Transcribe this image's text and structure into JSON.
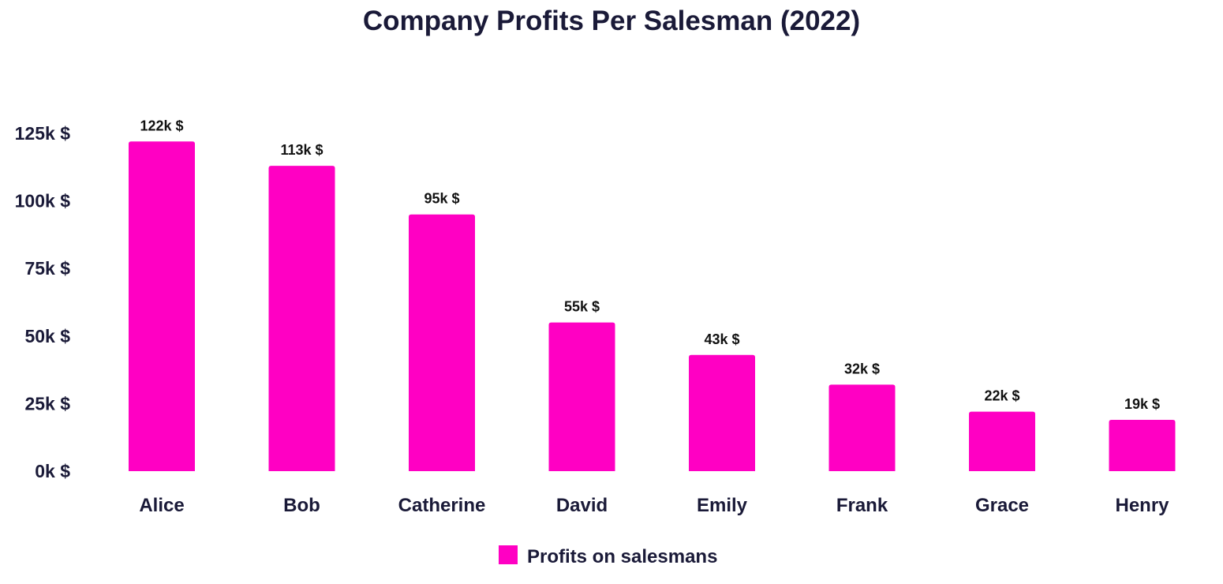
{
  "chart_data": {
    "type": "bar",
    "title": "Company Profits Per Salesman (2022)",
    "categories": [
      "Alice",
      "Bob",
      "Catherine",
      "David",
      "Emily",
      "Frank",
      "Grace",
      "Henry"
    ],
    "series": [
      {
        "name": "Profits on salesmans",
        "values": [
          122,
          113,
          95,
          55,
          43,
          32,
          22,
          19
        ],
        "data_labels": [
          "122k $",
          "113k $",
          "95k $",
          "55k $",
          "43k $",
          "32k $",
          "22k $",
          "19k $"
        ]
      }
    ],
    "unit": "k $",
    "ylim": [
      0,
      125
    ],
    "yticks": [
      0,
      25,
      50,
      75,
      100,
      125
    ],
    "ytick_labels": [
      "0k $",
      "25k $",
      "50k $",
      "75k $",
      "100k $",
      "125k $"
    ],
    "xlabel": "",
    "ylabel": "",
    "grid": false,
    "legend_position": "bottom-center",
    "colors": {
      "bar": "#ff00c3",
      "text": "#1a1a38"
    }
  }
}
